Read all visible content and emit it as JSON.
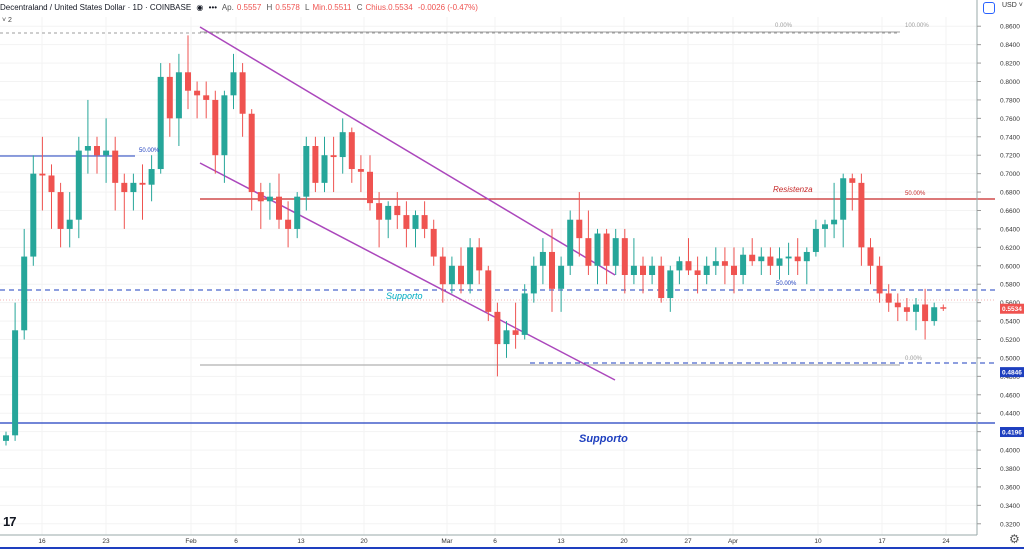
{
  "header": {
    "symbol": "Decentraland / United States Dollar · 1D · COINBASE",
    "eye_icon": "eye-icon",
    "menu_icon": "more-icon",
    "open_label": "Ap.",
    "open_value": "0.5557",
    "high_label": "H",
    "high_value": "0.5578",
    "low_label": "L",
    "low_value": "Min.0.5511",
    "close_label": "C",
    "close_value": "Chius.0.5534",
    "change": "-0.0026 (-0.47%)",
    "collapse": "˅ 2"
  },
  "currency": "USD ˅",
  "currency_icon": "currency-badge-icon",
  "settings_icon": "gear-icon",
  "colors": {
    "up": "#26a69a",
    "down": "#ef5350",
    "channel": "#ab47bc",
    "resistance": "#c62828",
    "support": "#1e3fbf",
    "support_text": "#00bcd4",
    "fib": "#9e9e9e"
  },
  "chart_data": {
    "type": "candlestick",
    "y_range": [
      0.31,
      0.87
    ],
    "y_ticks": [
      "0.8600",
      "0.8400",
      "0.8200",
      "0.8000",
      "0.7800",
      "0.7600",
      "0.7400",
      "0.7200",
      "0.7000",
      "0.6800",
      "0.6600",
      "0.6400",
      "0.6200",
      "0.6000",
      "0.5800",
      "0.5600",
      "0.5400",
      "0.5200",
      "0.5000",
      "0.4800",
      "0.4600",
      "0.4400",
      "0.4200",
      "0.4000",
      "0.3800",
      "0.3600",
      "0.3400",
      "0.3200"
    ],
    "x_labels": [
      "16",
      "23",
      "Feb",
      "6",
      "13",
      "20",
      "Mar",
      "6",
      "13",
      "20",
      "27",
      "Apr",
      "10",
      "17",
      "24"
    ],
    "price_labels": [
      {
        "value": 0.5534,
        "text": "0.5534"
      },
      {
        "value": 0.4846,
        "text": "0.4846"
      },
      {
        "value": 0.4196,
        "text": "0.4196"
      }
    ],
    "annotations": {
      "resistance": "Resistenza",
      "support_1": "Supporto",
      "support_2": "Supporto",
      "fib_top_0": "0.00%",
      "fib_top_100": "100.00%",
      "fib_50_a": "50.00%",
      "fib_50_b": "50.00%",
      "fib_50_c": "50.00%",
      "fib_bottom_0": "0.00%"
    },
    "candles": [
      [
        0.41,
        0.42,
        0.405,
        0.416
      ],
      [
        0.416,
        0.56,
        0.41,
        0.53
      ],
      [
        0.53,
        0.64,
        0.52,
        0.61
      ],
      [
        0.61,
        0.72,
        0.6,
        0.7
      ],
      [
        0.7,
        0.74,
        0.66,
        0.698
      ],
      [
        0.698,
        0.71,
        0.64,
        0.68
      ],
      [
        0.68,
        0.69,
        0.62,
        0.64
      ],
      [
        0.64,
        0.68,
        0.62,
        0.65
      ],
      [
        0.65,
        0.74,
        0.63,
        0.725
      ],
      [
        0.725,
        0.78,
        0.7,
        0.73
      ],
      [
        0.73,
        0.74,
        0.7,
        0.72
      ],
      [
        0.72,
        0.76,
        0.69,
        0.725
      ],
      [
        0.725,
        0.74,
        0.66,
        0.69
      ],
      [
        0.69,
        0.7,
        0.64,
        0.68
      ],
      [
        0.68,
        0.7,
        0.66,
        0.69
      ],
      [
        0.69,
        0.71,
        0.65,
        0.688
      ],
      [
        0.688,
        0.72,
        0.67,
        0.705
      ],
      [
        0.705,
        0.82,
        0.7,
        0.805
      ],
      [
        0.805,
        0.82,
        0.74,
        0.76
      ],
      [
        0.76,
        0.83,
        0.73,
        0.81
      ],
      [
        0.81,
        0.85,
        0.77,
        0.79
      ],
      [
        0.79,
        0.8,
        0.76,
        0.785
      ],
      [
        0.785,
        0.8,
        0.76,
        0.78
      ],
      [
        0.78,
        0.79,
        0.7,
        0.72
      ],
      [
        0.72,
        0.79,
        0.69,
        0.785
      ],
      [
        0.785,
        0.83,
        0.77,
        0.81
      ],
      [
        0.81,
        0.82,
        0.74,
        0.765
      ],
      [
        0.765,
        0.77,
        0.66,
        0.68
      ],
      [
        0.68,
        0.69,
        0.64,
        0.67
      ],
      [
        0.67,
        0.69,
        0.65,
        0.675
      ],
      [
        0.675,
        0.7,
        0.64,
        0.65
      ],
      [
        0.65,
        0.67,
        0.62,
        0.64
      ],
      [
        0.64,
        0.68,
        0.63,
        0.675
      ],
      [
        0.675,
        0.74,
        0.66,
        0.73
      ],
      [
        0.73,
        0.74,
        0.68,
        0.69
      ],
      [
        0.69,
        0.74,
        0.68,
        0.72
      ],
      [
        0.72,
        0.74,
        0.68,
        0.718
      ],
      [
        0.718,
        0.76,
        0.7,
        0.745
      ],
      [
        0.745,
        0.75,
        0.69,
        0.705
      ],
      [
        0.705,
        0.72,
        0.68,
        0.702
      ],
      [
        0.702,
        0.72,
        0.66,
        0.668
      ],
      [
        0.668,
        0.68,
        0.62,
        0.65
      ],
      [
        0.65,
        0.67,
        0.63,
        0.665
      ],
      [
        0.665,
        0.68,
        0.64,
        0.655
      ],
      [
        0.655,
        0.67,
        0.62,
        0.64
      ],
      [
        0.64,
        0.66,
        0.62,
        0.655
      ],
      [
        0.655,
        0.67,
        0.63,
        0.64
      ],
      [
        0.64,
        0.65,
        0.6,
        0.61
      ],
      [
        0.61,
        0.62,
        0.56,
        0.58
      ],
      [
        0.58,
        0.61,
        0.57,
        0.6
      ],
      [
        0.6,
        0.62,
        0.57,
        0.58
      ],
      [
        0.58,
        0.63,
        0.57,
        0.62
      ],
      [
        0.62,
        0.63,
        0.58,
        0.595
      ],
      [
        0.595,
        0.6,
        0.54,
        0.55
      ],
      [
        0.55,
        0.56,
        0.48,
        0.515
      ],
      [
        0.515,
        0.54,
        0.5,
        0.53
      ],
      [
        0.53,
        0.56,
        0.51,
        0.525
      ],
      [
        0.525,
        0.58,
        0.52,
        0.57
      ],
      [
        0.57,
        0.61,
        0.56,
        0.6
      ],
      [
        0.6,
        0.63,
        0.58,
        0.615
      ],
      [
        0.615,
        0.64,
        0.55,
        0.575
      ],
      [
        0.575,
        0.61,
        0.55,
        0.6
      ],
      [
        0.6,
        0.66,
        0.59,
        0.65
      ],
      [
        0.65,
        0.68,
        0.61,
        0.63
      ],
      [
        0.63,
        0.66,
        0.59,
        0.6
      ],
      [
        0.6,
        0.64,
        0.58,
        0.635
      ],
      [
        0.635,
        0.64,
        0.58,
        0.6
      ],
      [
        0.6,
        0.64,
        0.59,
        0.63
      ],
      [
        0.63,
        0.64,
        0.57,
        0.59
      ],
      [
        0.59,
        0.63,
        0.58,
        0.6
      ],
      [
        0.6,
        0.61,
        0.57,
        0.59
      ],
      [
        0.59,
        0.61,
        0.58,
        0.6
      ],
      [
        0.6,
        0.61,
        0.56,
        0.565
      ],
      [
        0.565,
        0.6,
        0.55,
        0.595
      ],
      [
        0.595,
        0.61,
        0.58,
        0.605
      ],
      [
        0.605,
        0.63,
        0.59,
        0.595
      ],
      [
        0.595,
        0.61,
        0.57,
        0.59
      ],
      [
        0.59,
        0.61,
        0.58,
        0.6
      ],
      [
        0.6,
        0.62,
        0.59,
        0.605
      ],
      [
        0.605,
        0.62,
        0.58,
        0.6
      ],
      [
        0.6,
        0.62,
        0.57,
        0.59
      ],
      [
        0.59,
        0.62,
        0.58,
        0.612
      ],
      [
        0.612,
        0.63,
        0.6,
        0.605
      ],
      [
        0.605,
        0.62,
        0.59,
        0.61
      ],
      [
        0.61,
        0.62,
        0.59,
        0.6
      ],
      [
        0.6,
        0.62,
        0.585,
        0.608
      ],
      [
        0.608,
        0.625,
        0.59,
        0.61
      ],
      [
        0.61,
        0.63,
        0.59,
        0.605
      ],
      [
        0.605,
        0.62,
        0.58,
        0.615
      ],
      [
        0.615,
        0.65,
        0.61,
        0.64
      ],
      [
        0.64,
        0.65,
        0.62,
        0.645
      ],
      [
        0.645,
        0.69,
        0.63,
        0.65
      ],
      [
        0.65,
        0.7,
        0.62,
        0.695
      ],
      [
        0.695,
        0.7,
        0.66,
        0.69
      ],
      [
        0.69,
        0.7,
        0.6,
        0.62
      ],
      [
        0.62,
        0.63,
        0.58,
        0.6
      ],
      [
        0.6,
        0.61,
        0.56,
        0.57
      ],
      [
        0.57,
        0.58,
        0.55,
        0.56
      ],
      [
        0.56,
        0.57,
        0.54,
        0.555
      ],
      [
        0.555,
        0.565,
        0.54,
        0.55
      ],
      [
        0.55,
        0.565,
        0.53,
        0.558
      ],
      [
        0.558,
        0.575,
        0.52,
        0.54
      ],
      [
        0.54,
        0.56,
        0.535,
        0.555
      ],
      [
        0.555,
        0.558,
        0.551,
        0.5534
      ]
    ]
  }
}
